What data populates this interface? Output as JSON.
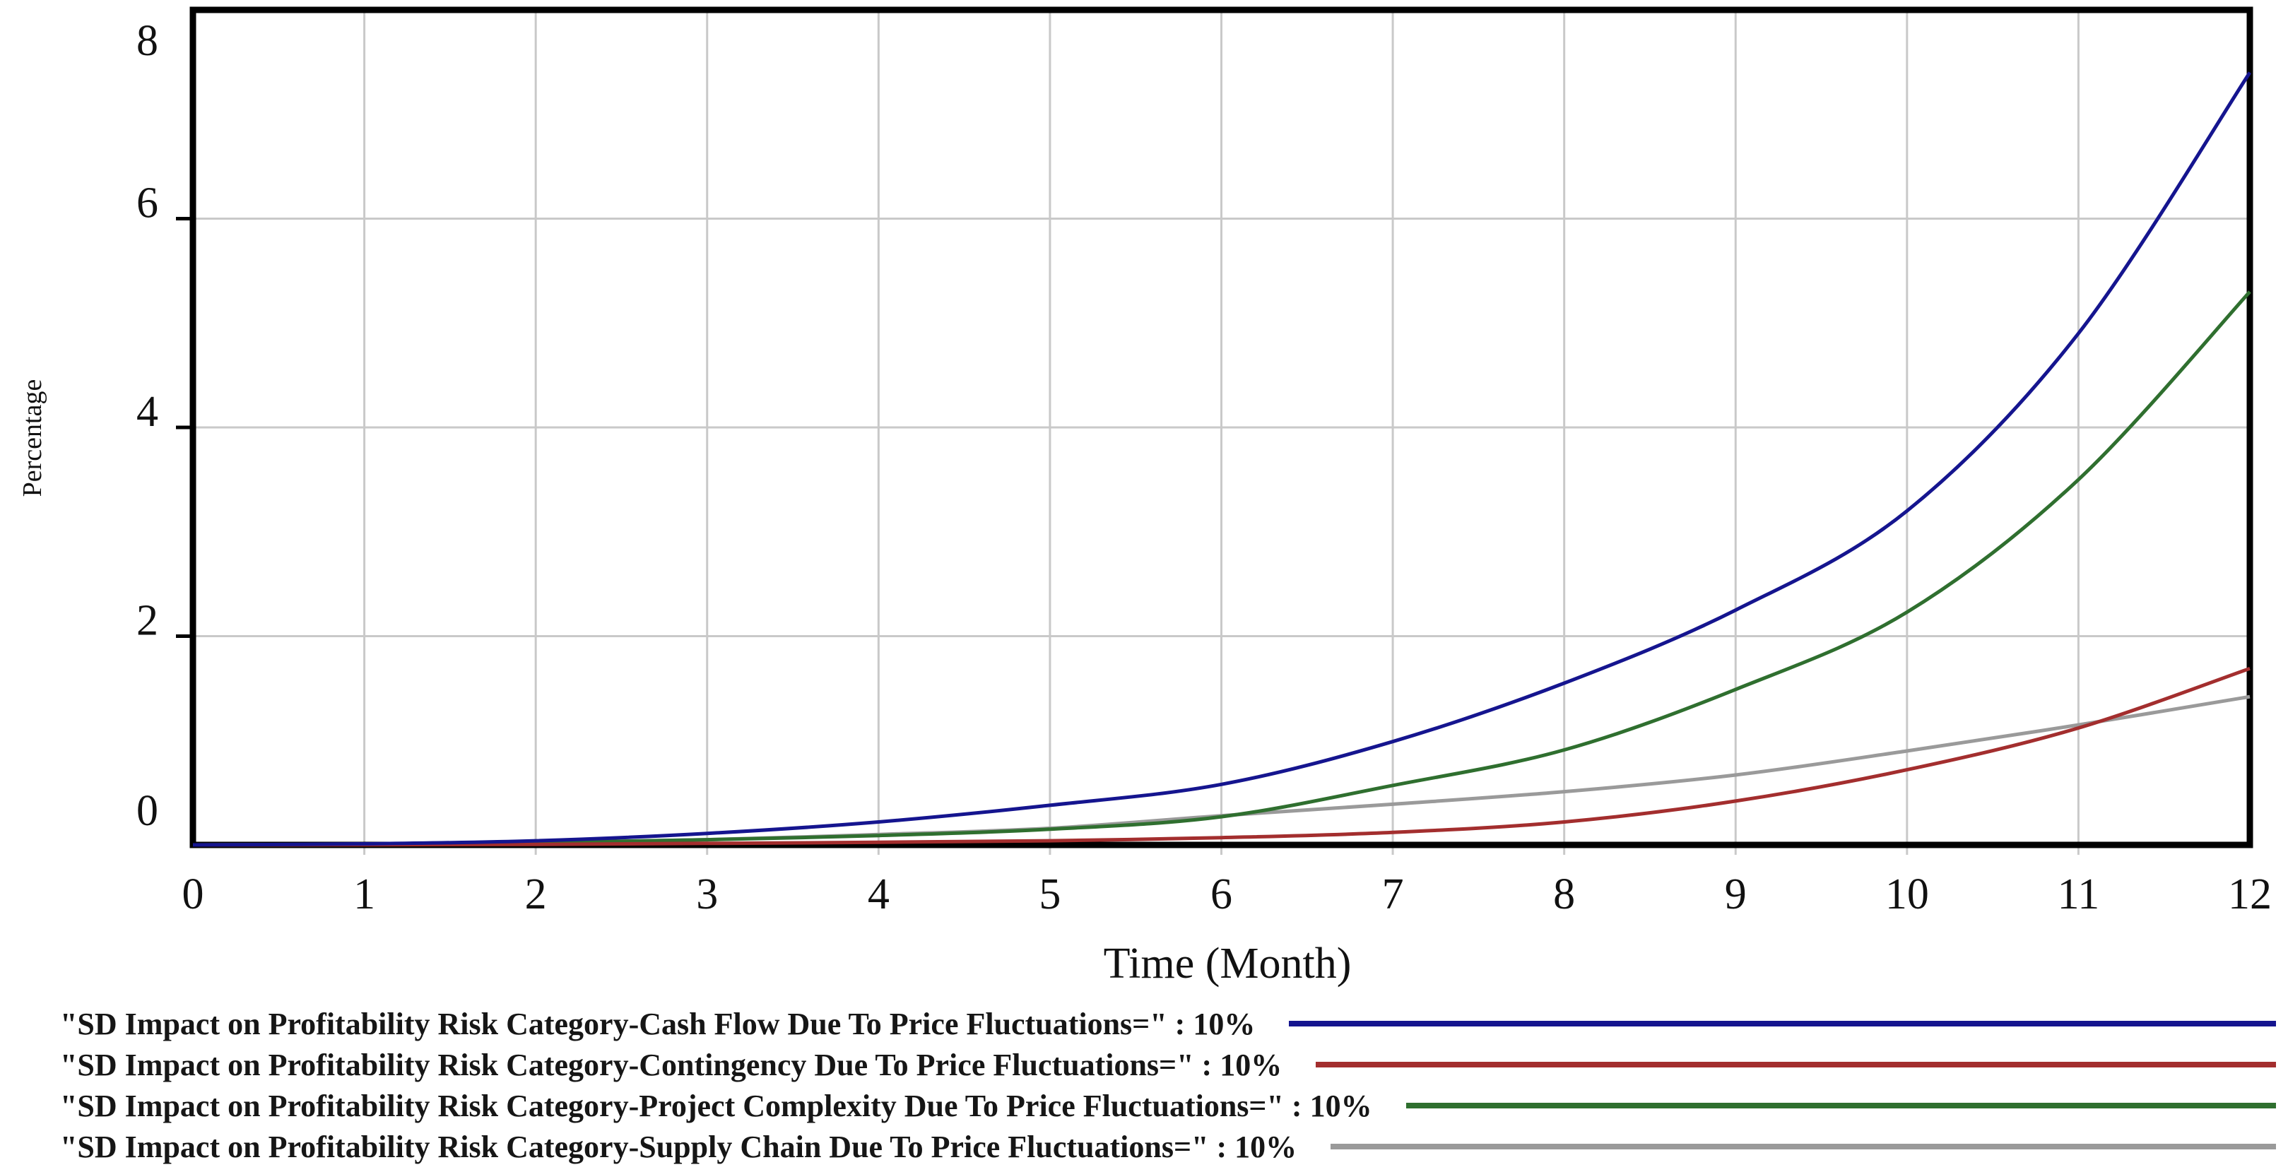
{
  "chart_data": {
    "type": "line",
    "title": "",
    "xlabel": "Time (Month)",
    "ylabel": "Percentage",
    "xlim": [
      0,
      12
    ],
    "ylim": [
      0,
      8
    ],
    "grid": true,
    "legend_position": "bottom-left",
    "x_ticks": [
      "0",
      "1",
      "2",
      "3",
      "4",
      "5",
      "6",
      "7",
      "8",
      "9",
      "10",
      "11",
      "12"
    ],
    "y_ticks": [
      "8",
      "6",
      "4",
      "2",
      "0"
    ],
    "y_tick_values": [
      8,
      6,
      4,
      2,
      0
    ],
    "x": [
      0,
      1,
      2,
      3,
      4,
      5,
      6,
      7,
      8,
      9,
      10,
      11,
      12
    ],
    "series": [
      {
        "name": "\"SD Impact on Profitability Risk Category-Cash Flow Due To Price Fluctuations=\" : 10%",
        "color": "#15158f",
        "values": [
          0,
          0.01,
          0.04,
          0.11,
          0.22,
          0.38,
          0.58,
          0.99,
          1.55,
          2.25,
          3.2,
          4.9,
          7.4
        ]
      },
      {
        "name": "\"SD Impact on Profitability Risk Category-Contingency Due To Price Fluctuations=\" : 10%",
        "color": "#a32e2e",
        "values": [
          0,
          0.002,
          0.005,
          0.015,
          0.025,
          0.04,
          0.07,
          0.12,
          0.22,
          0.42,
          0.72,
          1.12,
          1.69
        ]
      },
      {
        "name": "\"SD Impact on Profitability Risk Category-Project Complexity Due To Price Fluctuations=\" : 10%",
        "color": "#2f6f2f",
        "values": [
          0,
          0.005,
          0.02,
          0.05,
          0.09,
          0.15,
          0.27,
          0.57,
          0.91,
          1.49,
          2.23,
          3.5,
          5.3
        ]
      },
      {
        "name": "\"SD Impact on Profitability Risk Category-Supply Chain Due To Price Fluctuations=\" : 10%",
        "color": "#9a9a9a",
        "values": [
          0,
          0.005,
          0.02,
          0.05,
          0.1,
          0.16,
          0.28,
          0.39,
          0.51,
          0.67,
          0.9,
          1.15,
          1.42
        ]
      }
    ],
    "grid_color": "#c9c9c9",
    "frame_color": "#000000"
  }
}
